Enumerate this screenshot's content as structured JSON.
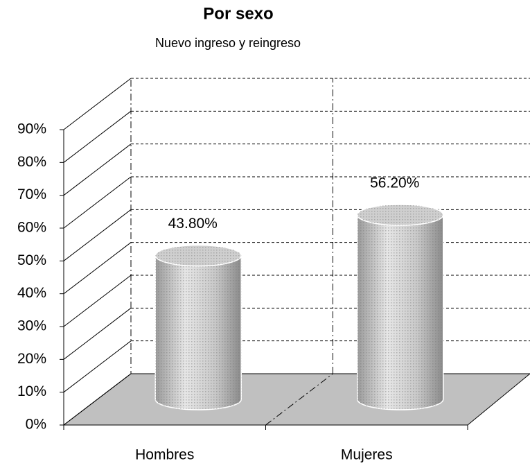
{
  "chart_data": {
    "type": "bar3d-cylinder",
    "title": "Por sexo",
    "subtitle": "Nuevo ingreso y reingreso",
    "categories": [
      "Hombres",
      "Mujeres"
    ],
    "values": [
      43.8,
      56.2
    ],
    "value_labels": [
      "43.80%",
      "56.20%"
    ],
    "color": "#cfcfcf",
    "ylim": [
      0,
      90
    ],
    "yticks": [
      {
        "value": 0,
        "label": "0%"
      },
      {
        "value": 10,
        "label": "10%"
      },
      {
        "value": 20,
        "label": "20%"
      },
      {
        "value": 30,
        "label": "30%"
      },
      {
        "value": 40,
        "label": "40%"
      },
      {
        "value": 50,
        "label": "50%"
      },
      {
        "value": 60,
        "label": "60%"
      },
      {
        "value": 70,
        "label": "70%"
      },
      {
        "value": 80,
        "label": "80%"
      },
      {
        "value": 90,
        "label": "90%"
      }
    ],
    "grid": true
  }
}
